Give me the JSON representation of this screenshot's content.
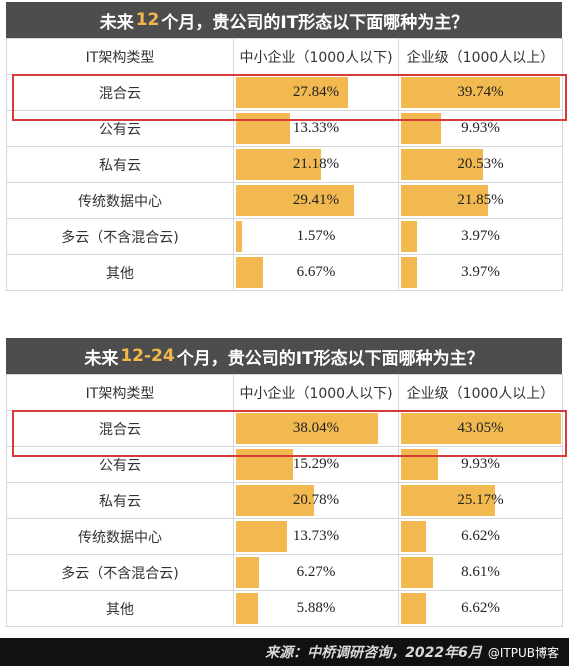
{
  "panels": [
    {
      "title_pre": "未来",
      "title_hl": "12",
      "title_post": "个月，贵公司的IT形态以下面哪种为主？",
      "header": {
        "col1": "IT架构类型",
        "col2": "中小企业（1000人以下)",
        "col3": "企业级（1000人以上）"
      }
    },
    {
      "title_pre": "未来",
      "title_hl": "12-24",
      "title_post": "个月，贵公司的IT形态以下面哪种为主？",
      "header": {
        "col1": "IT架构类型",
        "col2": "中小企业（1000人以下)",
        "col3": "企业级（1000人以上）"
      }
    }
  ],
  "chart_data": [
    {
      "type": "bar",
      "title": "未来12个月，贵公司的IT形态以下面哪种为主？",
      "categories": [
        "混合云",
        "公有云",
        "私有云",
        "传统数据中心",
        "多云（不含混合云)",
        "其他"
      ],
      "series": [
        {
          "name": "中小企业（1000人以下)",
          "values": [
            27.84,
            13.33,
            21.18,
            29.41,
            1.57,
            6.67
          ]
        },
        {
          "name": "企业级（1000人以上）",
          "values": [
            39.74,
            9.93,
            20.53,
            21.85,
            3.97,
            3.97
          ]
        }
      ],
      "bar_scale_max": 40,
      "highlighted_row": "混合云"
    },
    {
      "type": "bar",
      "title": "未来12-24个月，贵公司的IT形态以下面哪种为主？",
      "categories": [
        "混合云",
        "公有云",
        "私有云",
        "传统数据中心",
        "多云（不含混合云)",
        "其他"
      ],
      "series": [
        {
          "name": "中小企业（1000人以下)",
          "values": [
            38.04,
            15.29,
            20.78,
            13.73,
            6.27,
            5.88
          ]
        },
        {
          "name": "企业级（1000人以上）",
          "values": [
            43.05,
            9.93,
            25.17,
            6.62,
            8.61,
            6.62
          ]
        }
      ],
      "bar_scale_max": 43.05,
      "highlighted_row": "混合云"
    }
  ],
  "colors": {
    "bar": "#f1b94f",
    "title_bg": "#4d4d4d",
    "title_highlight": "#f2b84b",
    "frame": "#d73a3a"
  },
  "footer": {
    "source": "来源：中桥调研咨询，2022年6月",
    "watermark": "@ITPUB博客"
  }
}
